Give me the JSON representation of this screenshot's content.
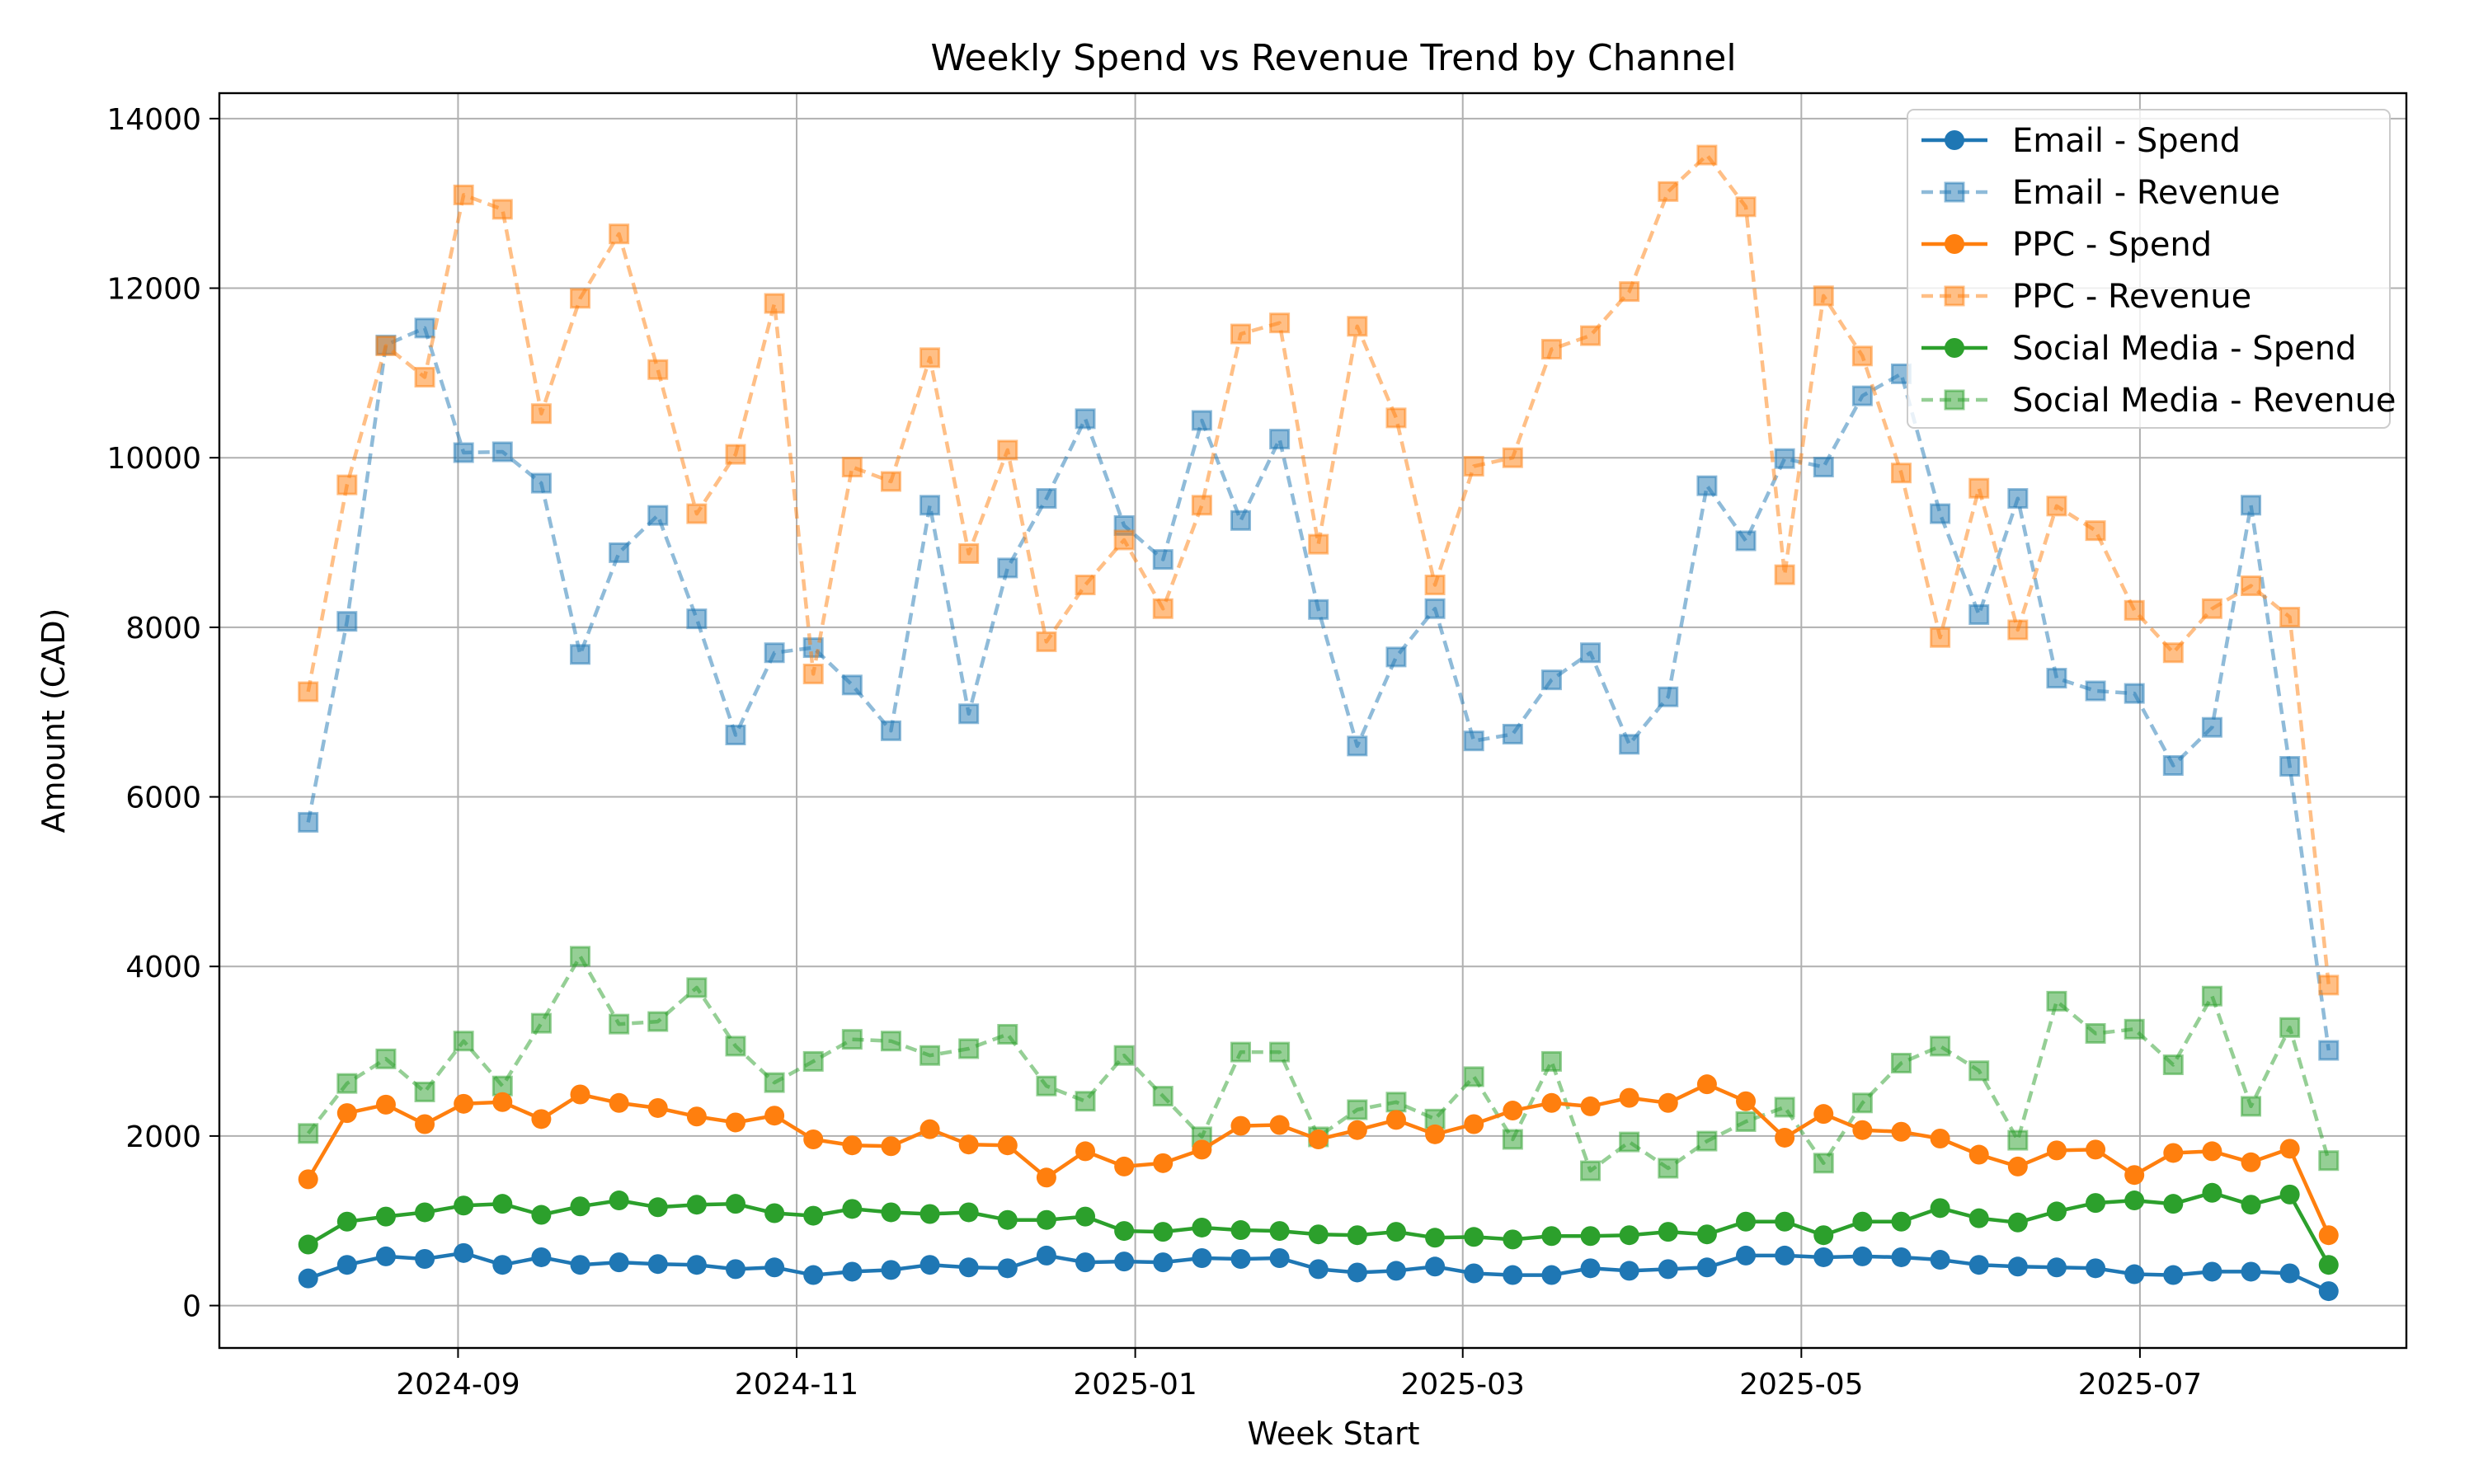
{
  "chart_data": {
    "type": "line",
    "title": "Weekly Spend vs Revenue Trend by Channel",
    "xlabel": "Week Start",
    "ylabel": "Amount (CAD)",
    "x_axis_type": "date",
    "x_range": [
      "2024-07-20",
      "2025-08-18"
    ],
    "ylim": [
      -500,
      14300
    ],
    "x_ticks": [
      {
        "date": "2024-09-01",
        "label": "2024-09"
      },
      {
        "date": "2024-11-01",
        "label": "2024-11"
      },
      {
        "date": "2025-01-01",
        "label": "2025-01"
      },
      {
        "date": "2025-03-01",
        "label": "2025-03"
      },
      {
        "date": "2025-05-01",
        "label": "2025-05"
      },
      {
        "date": "2025-07-01",
        "label": "2025-07"
      }
    ],
    "y_ticks": [
      0,
      2000,
      4000,
      6000,
      8000,
      10000,
      12000,
      14000
    ],
    "grid": true,
    "legend_position": "top-right",
    "x": [
      "2024-08-05",
      "2024-08-12",
      "2024-08-19",
      "2024-08-26",
      "2024-09-02",
      "2024-09-09",
      "2024-09-16",
      "2024-09-23",
      "2024-09-30",
      "2024-10-07",
      "2024-10-14",
      "2024-10-21",
      "2024-10-28",
      "2024-11-04",
      "2024-11-11",
      "2024-11-18",
      "2024-11-25",
      "2024-12-02",
      "2024-12-09",
      "2024-12-16",
      "2024-12-23",
      "2024-12-30",
      "2025-01-06",
      "2025-01-13",
      "2025-01-20",
      "2025-01-27",
      "2025-02-03",
      "2025-02-10",
      "2025-02-17",
      "2025-02-24",
      "2025-03-03",
      "2025-03-10",
      "2025-03-17",
      "2025-03-24",
      "2025-03-31",
      "2025-04-07",
      "2025-04-14",
      "2025-04-21",
      "2025-04-28",
      "2025-05-05",
      "2025-05-12",
      "2025-05-19",
      "2025-05-26",
      "2025-06-02",
      "2025-06-09",
      "2025-06-16",
      "2025-06-23",
      "2025-06-30",
      "2025-07-07",
      "2025-07-14",
      "2025-07-21",
      "2025-07-28",
      "2025-08-04"
    ],
    "series": [
      {
        "name": "Email - Spend",
        "color": "#1f77b4",
        "marker": "circle",
        "linestyle": "solid",
        "values": [
          320,
          480,
          580,
          550,
          620,
          480,
          570,
          480,
          510,
          490,
          480,
          430,
          450,
          360,
          400,
          420,
          480,
          450,
          440,
          590,
          510,
          520,
          510,
          560,
          550,
          560,
          430,
          390,
          410,
          460,
          380,
          360,
          360,
          440,
          410,
          430,
          450,
          590,
          590,
          570,
          580,
          570,
          540,
          480,
          460,
          450,
          440,
          370,
          360,
          400,
          400,
          380,
          170
        ]
      },
      {
        "name": "Email - Revenue",
        "color": "#1f77b4",
        "marker": "square",
        "linestyle": "dashed",
        "values": [
          5700,
          8070,
          11330,
          11530,
          10060,
          10070,
          9700,
          7680,
          8880,
          9320,
          8100,
          6730,
          7700,
          7760,
          7320,
          6780,
          9440,
          6980,
          8700,
          9520,
          10460,
          9200,
          8800,
          10440,
          9260,
          10220,
          8210,
          6600,
          7650,
          8220,
          6660,
          6740,
          7380,
          7700,
          6620,
          7180,
          9670,
          9020,
          9990,
          9890,
          10730,
          10990,
          9340,
          8150,
          9520,
          7400,
          7250,
          7220,
          6370,
          6820,
          9440,
          6360,
          3010
        ]
      },
      {
        "name": "PPC - Spend",
        "color": "#ff7f0e",
        "marker": "circle",
        "linestyle": "solid",
        "values": [
          1490,
          2270,
          2370,
          2140,
          2380,
          2400,
          2200,
          2490,
          2390,
          2330,
          2230,
          2160,
          2240,
          1960,
          1890,
          1880,
          2080,
          1900,
          1890,
          1510,
          1820,
          1640,
          1680,
          1840,
          2120,
          2130,
          1960,
          2070,
          2190,
          2020,
          2140,
          2300,
          2390,
          2350,
          2450,
          2390,
          2610,
          2410,
          1980,
          2260,
          2070,
          2050,
          1970,
          1780,
          1640,
          1830,
          1840,
          1540,
          1800,
          1820,
          1690,
          1850,
          830
        ]
      },
      {
        "name": "PPC - Revenue",
        "color": "#ff7f0e",
        "marker": "square",
        "linestyle": "dashed",
        "values": [
          7240,
          9680,
          11320,
          10950,
          13100,
          12930,
          10520,
          11880,
          12640,
          11040,
          9340,
          10040,
          11820,
          7450,
          9890,
          9720,
          11180,
          8870,
          10090,
          7830,
          8500,
          9030,
          8220,
          9440,
          11460,
          11590,
          8980,
          11550,
          10470,
          8500,
          9900,
          10000,
          11280,
          11440,
          11960,
          13140,
          13570,
          12960,
          8620,
          11910,
          11200,
          9820,
          7880,
          9640,
          7970,
          9430,
          9140,
          8200,
          7700,
          8220,
          8490,
          8120,
          3780
        ]
      },
      {
        "name": "Social Media - Spend",
        "color": "#2ca02c",
        "marker": "circle",
        "linestyle": "solid",
        "values": [
          720,
          990,
          1050,
          1100,
          1180,
          1200,
          1070,
          1170,
          1240,
          1160,
          1190,
          1200,
          1090,
          1060,
          1140,
          1100,
          1080,
          1100,
          1010,
          1010,
          1050,
          880,
          870,
          920,
          890,
          880,
          840,
          830,
          870,
          800,
          810,
          780,
          820,
          820,
          830,
          870,
          840,
          990,
          990,
          830,
          990,
          990,
          1150,
          1030,
          980,
          1110,
          1210,
          1240,
          1200,
          1330,
          1190,
          1310,
          480
        ]
      },
      {
        "name": "Social Media - Revenue",
        "color": "#2ca02c",
        "marker": "square",
        "linestyle": "dashed",
        "values": [
          2030,
          2620,
          2910,
          2520,
          3120,
          2590,
          3330,
          4120,
          3320,
          3350,
          3750,
          3060,
          2630,
          2880,
          3140,
          3120,
          2950,
          3030,
          3200,
          2590,
          2410,
          2950,
          2470,
          1990,
          2990,
          2990,
          1990,
          2310,
          2400,
          2200,
          2700,
          1960,
          2880,
          1590,
          1930,
          1620,
          1940,
          2170,
          2340,
          1680,
          2390,
          2860,
          3060,
          2770,
          1950,
          3590,
          3210,
          3260,
          2840,
          3650,
          2350,
          3280,
          1710
        ]
      }
    ]
  }
}
